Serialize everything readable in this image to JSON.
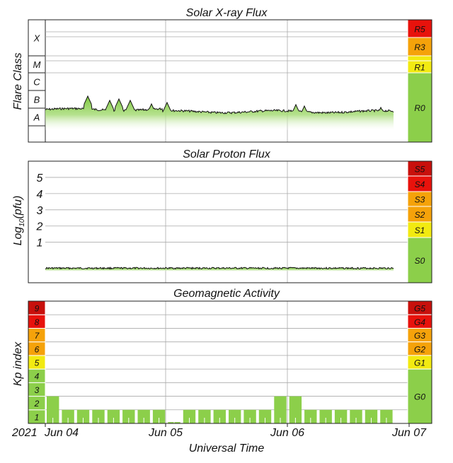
{
  "colors": {
    "green": "#8ccf4a",
    "yellow": "#f2ea11",
    "orange": "#f5a20a",
    "red_orange": "#f06a0a",
    "red": "#e8120c",
    "dark_red": "#c8100c",
    "grid": "#aaaaaa",
    "panel_border": "#222222"
  },
  "x_axis": {
    "title": "Universal Time",
    "year_label": "2021",
    "tick_labels": [
      "Jun 04",
      "Jun 05",
      "Jun 06",
      "Jun 07"
    ]
  },
  "chart_data": [
    {
      "type": "area",
      "title": "Solar X-ray Flux",
      "ylabel": "Flare Class",
      "y_scale": "log",
      "y_categories": [
        "A",
        "B",
        "C",
        "M",
        "X"
      ],
      "x": [
        "2021-06-04",
        "2021-06-05",
        "2021-06-06",
        "2021-06-07"
      ],
      "flux_class_estimate": "low B (about B1-B3), brief peaks near B4",
      "scale_labels": [
        "R5",
        "R3",
        "R1",
        "R0"
      ],
      "scale_colors": [
        "#e8120c",
        "#f5a20a",
        "#f2ea11",
        "#8ccf4a"
      ],
      "grid": true
    },
    {
      "type": "area",
      "title": "Solar Proton Flux",
      "ylabel": "Log10(pfu)",
      "ylabel_parts": [
        "Log",
        "10",
        "(pfu)"
      ],
      "y_ticks": [
        "5",
        "4",
        "3",
        "2",
        "1"
      ],
      "ylim": [
        -1.5,
        6
      ],
      "series": [
        {
          "values_approx_log10": -0.6
        }
      ],
      "scale_labels": [
        "S5",
        "S4",
        "S3",
        "S2",
        "S1",
        "S0"
      ],
      "scale_colors": [
        "#c8100c",
        "#e8120c",
        "#f5a20a",
        "#f5a20a",
        "#f2ea11",
        "#8ccf4a"
      ],
      "grid": true
    },
    {
      "type": "bar",
      "title": "Geomagnetic Activity",
      "ylabel": "Kp index",
      "ylim": [
        0,
        9
      ],
      "y_ticks": [
        "1",
        "2",
        "3",
        "4",
        "5",
        "6",
        "7",
        "8",
        "9"
      ],
      "y_tick_colors": [
        "#8ccf4a",
        "#8ccf4a",
        "#8ccf4a",
        "#8ccf4a",
        "#f2ea11",
        "#f5a20a",
        "#f5a20a",
        "#e8120c",
        "#c8100c"
      ],
      "values": [
        2,
        1,
        1,
        1,
        1,
        1,
        1,
        1,
        0.1,
        1,
        1,
        1,
        1,
        1,
        1,
        2,
        2,
        1,
        1,
        1,
        1,
        1,
        1
      ],
      "scale_labels": [
        "G5",
        "G4",
        "G3",
        "G2",
        "G1",
        "G0"
      ],
      "scale_colors": [
        "#c8100c",
        "#e8120c",
        "#f5a20a",
        "#f5a20a",
        "#f2ea11",
        "#8ccf4a"
      ],
      "grid": true
    }
  ]
}
